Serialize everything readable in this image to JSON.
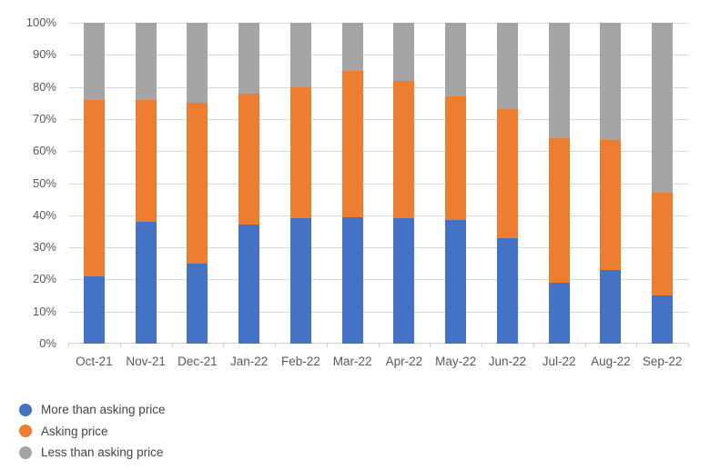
{
  "chart_data": {
    "type": "bar",
    "stacked": true,
    "percent_stacked": true,
    "title": "",
    "xlabel": "",
    "ylabel": "",
    "ylim": [
      0,
      100
    ],
    "ytick_step": 10,
    "y_tick_labels": [
      "0%",
      "10%",
      "20%",
      "30%",
      "40%",
      "50%",
      "60%",
      "70%",
      "80%",
      "90%",
      "100%"
    ],
    "grid": true,
    "legend_position": "bottom-left",
    "legend_marker": "circle",
    "categories": [
      "Oct-21",
      "Nov-21",
      "Dec-21",
      "Jan-22",
      "Feb-22",
      "Mar-22",
      "Apr-22",
      "May-22",
      "Jun-22",
      "Jul-22",
      "Aug-22",
      "Sep-22"
    ],
    "series": [
      {
        "name": "More than asking price",
        "color": "#4472C4",
        "values": [
          21,
          38,
          25,
          37,
          39,
          39.5,
          39,
          38.5,
          33,
          19,
          23,
          15
        ]
      },
      {
        "name": "Asking price",
        "color": "#ED7D31",
        "values": [
          55,
          38,
          50,
          41,
          41,
          45.5,
          43,
          38.5,
          40,
          45,
          40.5,
          32
        ]
      },
      {
        "name": "Less than asking price",
        "color": "#A5A5A5",
        "values": [
          24,
          24,
          25,
          22,
          20,
          15,
          18,
          23,
          27,
          36,
          36.5,
          53
        ]
      }
    ]
  },
  "colors": {
    "gridline": "#d9d9d9",
    "axis_text": "#595959",
    "legend_text": "#454545",
    "background": "#ffffff"
  }
}
